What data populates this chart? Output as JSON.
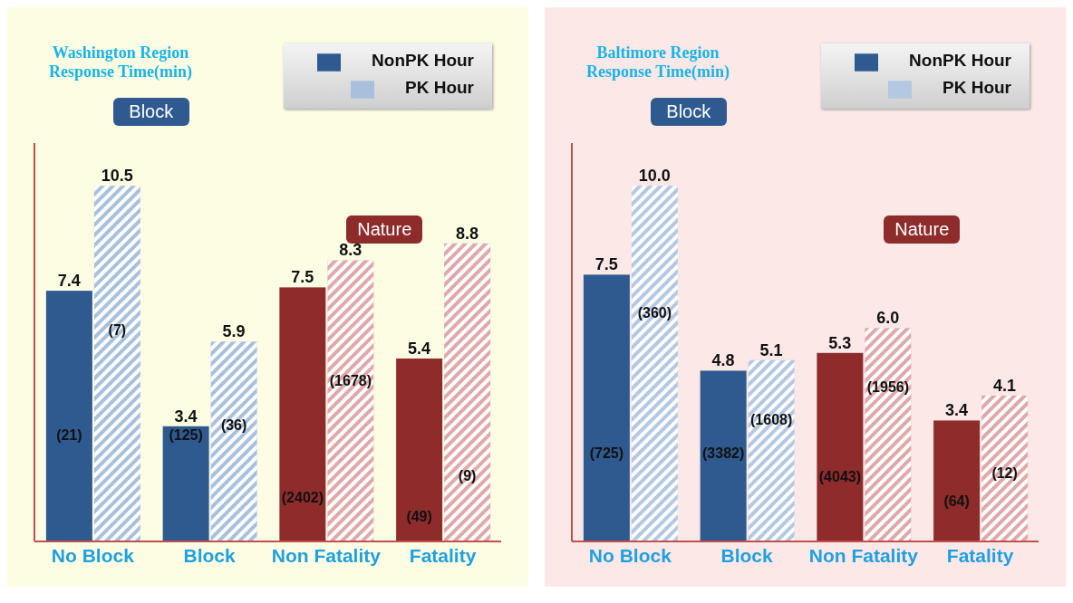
{
  "chart_data": [
    {
      "type": "bar",
      "title": "Washington Region Response Time(min)",
      "categories": [
        "No Block",
        "Block",
        "Non Fatality",
        "Fatality"
      ],
      "legend": "top right",
      "series": [
        {
          "name": "NonPK Hour",
          "colors": [
            "#2f5a8f",
            "#2f5a8f",
            "#8e2b2b",
            "#8e2b2b"
          ],
          "values": [
            7.4,
            3.4,
            7.5,
            5.4
          ],
          "value_labels": [
            "7.4",
            "3.4",
            "7.5",
            "5.4"
          ]
        },
        {
          "name": "PK Hour",
          "colors": [
            "#a9c0dc",
            "#a9c0dc",
            "#e0a9a9",
            "#e0a9a9"
          ],
          "values": [
            10.5,
            5.9,
            8.3,
            8.8
          ],
          "value_labels": [
            "10.5",
            "5.9",
            "8.3",
            "8.8"
          ]
        }
      ],
      "annotations": [
        "Block",
        "Nature",
        {
          "text": "(21)",
          "x": "No Block",
          "y": 3.1
        },
        {
          "text": "(7)",
          "x": "No Block",
          "y": 6.2
        },
        {
          "text": "(125)",
          "x": "Block",
          "y": 3.1
        },
        {
          "text": "(36)",
          "x": "Block",
          "y": 3.4
        },
        {
          "text": "(2402)",
          "x": "Non Fatality",
          "y": 1.25
        },
        {
          "text": "(1678)",
          "x": "Non Fatality",
          "y": 4.7
        },
        {
          "text": "(49)",
          "x": "Fatality",
          "y": 0.7
        },
        {
          "text": "(9)",
          "x": "Fatality",
          "y": 1.9
        }
      ]
    },
    {
      "type": "bar",
      "title": "Baltimore Region Response Time(min)",
      "categories": [
        "No Block",
        "Block",
        "Non Fatality",
        "Fatality"
      ],
      "legend": "top right",
      "series": [
        {
          "name": "NonPK Hour",
          "colors": [
            "#2f5a8f",
            "#2f5a8f",
            "#8e2b2b",
            "#8e2b2b"
          ],
          "values": [
            7.5,
            4.8,
            5.3,
            3.4
          ],
          "value_labels": [
            "7.5",
            "4.8",
            "5.3",
            "3.4"
          ]
        },
        {
          "name": "PK Hour",
          "colors": [
            "#b4c8e2",
            "#b4c8e2",
            "#e0a9a9",
            "#e0a9a9"
          ],
          "values": [
            10.0,
            5.1,
            6.0,
            4.1
          ],
          "value_labels": [
            "10.0",
            "5.1",
            "6.0",
            "4.1"
          ]
        }
      ],
      "annotations": [
        "Block",
        "Nature",
        {
          "text": "(725)",
          "x": "No Block",
          "y": 2.45
        },
        {
          "text": "(360)",
          "x": "No Block",
          "y": 6.4
        },
        {
          "text": "(3382)",
          "x": "Block",
          "y": 2.45
        },
        {
          "text": "(1608)",
          "x": "Block",
          "y": 3.4
        },
        {
          "text": "(4043)",
          "x": "Non Fatality",
          "y": 1.8
        },
        {
          "text": "(1956)",
          "x": "Non Fatality",
          "y": 4.3
        },
        {
          "text": "(64)",
          "x": "Fatality",
          "y": 1.1
        },
        {
          "text": "(12)",
          "x": "Fatality",
          "y": 1.9
        }
      ]
    }
  ]
}
